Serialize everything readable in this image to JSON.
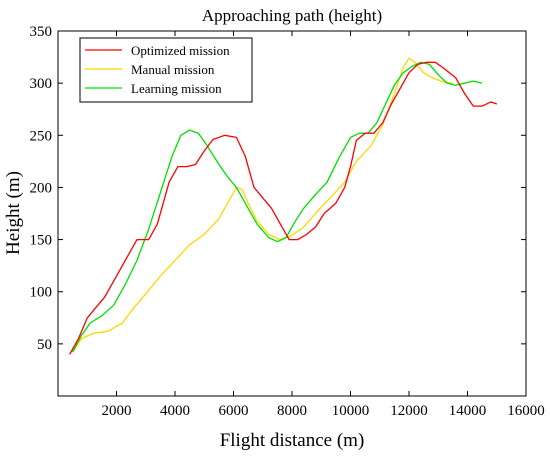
{
  "chart_data": {
    "type": "line",
    "title": "Approaching path (height)",
    "xlabel": "Flight distance (m)",
    "ylabel": "Height (m)",
    "xlim": [
      0,
      16000
    ],
    "ylim": [
      0,
      350
    ],
    "xticks": [
      2000,
      4000,
      6000,
      8000,
      10000,
      12000,
      14000,
      16000
    ],
    "yticks": [
      50,
      100,
      150,
      200,
      250,
      300,
      350
    ],
    "grid": false,
    "legend_position": "top-left",
    "series": [
      {
        "name": "Optimized mission",
        "color": "#ff0000",
        "points": [
          [
            400,
            40
          ],
          [
            700,
            55
          ],
          [
            1000,
            75
          ],
          [
            1300,
            85
          ],
          [
            1600,
            95
          ],
          [
            2000,
            115
          ],
          [
            2400,
            135
          ],
          [
            2700,
            150
          ],
          [
            3100,
            150
          ],
          [
            3400,
            165
          ],
          [
            3800,
            205
          ],
          [
            4100,
            220
          ],
          [
            4400,
            220
          ],
          [
            4700,
            222
          ],
          [
            5000,
            235
          ],
          [
            5300,
            246
          ],
          [
            5700,
            250
          ],
          [
            6100,
            248
          ],
          [
            6400,
            230
          ],
          [
            6700,
            200
          ],
          [
            7000,
            190
          ],
          [
            7300,
            180
          ],
          [
            7600,
            165
          ],
          [
            7900,
            150
          ],
          [
            8200,
            150
          ],
          [
            8500,
            155
          ],
          [
            8800,
            162
          ],
          [
            9100,
            175
          ],
          [
            9500,
            185
          ],
          [
            9800,
            200
          ],
          [
            10000,
            220
          ],
          [
            10200,
            245
          ],
          [
            10500,
            252
          ],
          [
            10800,
            252
          ],
          [
            11100,
            262
          ],
          [
            11400,
            280
          ],
          [
            11700,
            295
          ],
          [
            12000,
            310
          ],
          [
            12300,
            318
          ],
          [
            12600,
            320
          ],
          [
            12900,
            320
          ],
          [
            13200,
            314
          ],
          [
            13600,
            305
          ],
          [
            13900,
            290
          ],
          [
            14200,
            278
          ],
          [
            14500,
            278
          ],
          [
            14800,
            282
          ],
          [
            15000,
            280
          ]
        ]
      },
      {
        "name": "Manual mission",
        "color": "#ffd700",
        "points": [
          [
            500,
            42
          ],
          [
            800,
            55
          ],
          [
            1200,
            60
          ],
          [
            1700,
            62
          ],
          [
            2200,
            70
          ],
          [
            2600,
            85
          ],
          [
            3000,
            98
          ],
          [
            3500,
            115
          ],
          [
            4000,
            130
          ],
          [
            4500,
            145
          ],
          [
            5000,
            155
          ],
          [
            5500,
            170
          ],
          [
            5800,
            185
          ],
          [
            6100,
            200
          ],
          [
            6300,
            198
          ],
          [
            6500,
            185
          ],
          [
            6800,
            168
          ],
          [
            7200,
            155
          ],
          [
            7600,
            150
          ],
          [
            8000,
            154
          ],
          [
            8400,
            162
          ],
          [
            8800,
            175
          ],
          [
            9300,
            190
          ],
          [
            9800,
            205
          ],
          [
            10200,
            225
          ],
          [
            10700,
            240
          ],
          [
            11100,
            260
          ],
          [
            11500,
            290
          ],
          [
            11800,
            315
          ],
          [
            12000,
            324
          ],
          [
            12200,
            320
          ],
          [
            12500,
            310
          ],
          [
            12800,
            305
          ],
          [
            13200,
            301
          ],
          [
            13500,
            300
          ]
        ]
      },
      {
        "name": "Learning mission",
        "color": "#00e000",
        "points": [
          [
            500,
            42
          ],
          [
            800,
            58
          ],
          [
            1100,
            70
          ],
          [
            1500,
            77
          ],
          [
            1900,
            87
          ],
          [
            2300,
            107
          ],
          [
            2700,
            130
          ],
          [
            3100,
            160
          ],
          [
            3500,
            195
          ],
          [
            3900,
            230
          ],
          [
            4200,
            250
          ],
          [
            4500,
            255
          ],
          [
            4800,
            252
          ],
          [
            5100,
            240
          ],
          [
            5500,
            222
          ],
          [
            5800,
            210
          ],
          [
            6100,
            200
          ],
          [
            6400,
            185
          ],
          [
            6800,
            165
          ],
          [
            7200,
            152
          ],
          [
            7500,
            148
          ],
          [
            7800,
            152
          ],
          [
            8100,
            167
          ],
          [
            8400,
            180
          ],
          [
            8800,
            193
          ],
          [
            9200,
            205
          ],
          [
            9600,
            228
          ],
          [
            10000,
            248
          ],
          [
            10300,
            252
          ],
          [
            10600,
            252
          ],
          [
            10900,
            262
          ],
          [
            11200,
            280
          ],
          [
            11500,
            298
          ],
          [
            11800,
            310
          ],
          [
            12100,
            316
          ],
          [
            12400,
            320
          ],
          [
            12700,
            318
          ],
          [
            13000,
            308
          ],
          [
            13300,
            300
          ],
          [
            13600,
            298
          ],
          [
            13900,
            300
          ],
          [
            14200,
            302
          ],
          [
            14500,
            300
          ]
        ]
      }
    ]
  }
}
